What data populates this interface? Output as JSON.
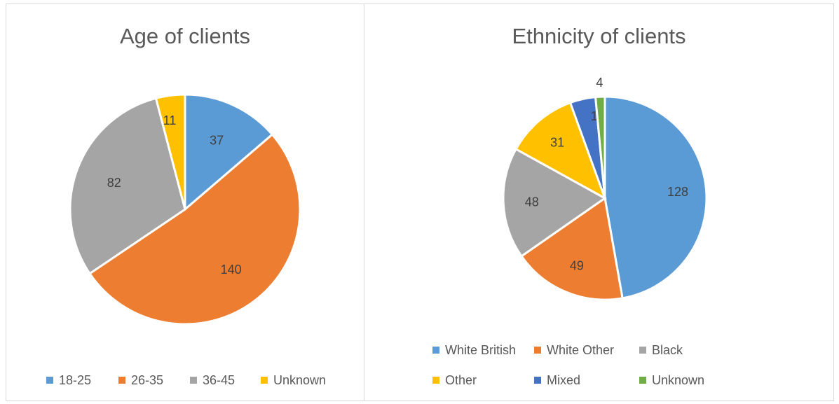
{
  "chart_data": [
    {
      "type": "pie",
      "title": "Age of clients",
      "categories": [
        "18-25",
        "26-35",
        "36-45",
        "Unknown"
      ],
      "values": [
        37,
        140,
        82,
        11
      ],
      "colors": [
        "#5B9BD5",
        "#ED7D31",
        "#A5A5A5",
        "#FFC000"
      ],
      "legend_position": "bottom"
    },
    {
      "type": "pie",
      "title": "Ethnicity of clients",
      "categories": [
        "White British",
        "White Other",
        "Black",
        "Other",
        "Mixed",
        "Unknown"
      ],
      "values": [
        128,
        49,
        48,
        31,
        11,
        4
      ],
      "colors": [
        "#5B9BD5",
        "#ED7D31",
        "#A5A5A5",
        "#FFC000",
        "#4472C4",
        "#70AD47"
      ],
      "legend_position": "bottom"
    }
  ]
}
